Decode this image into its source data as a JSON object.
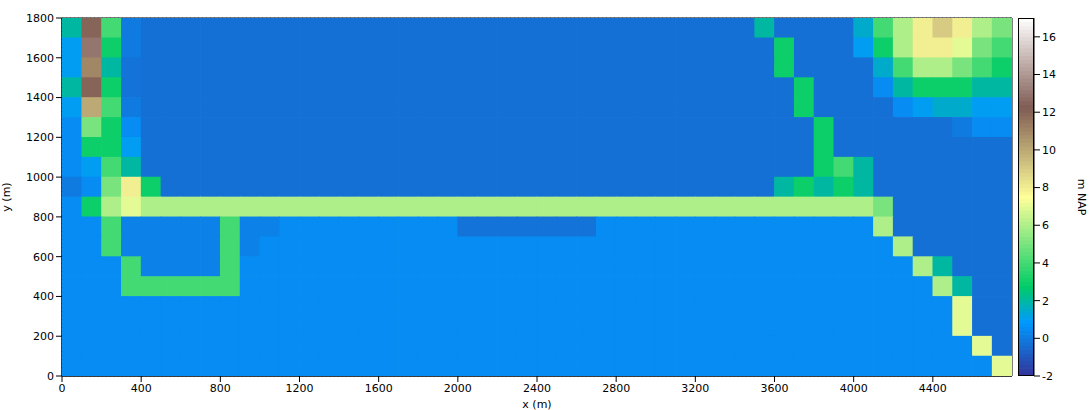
{
  "chart_data": {
    "type": "heatmap",
    "x_label": "x (m)",
    "y_label": "y (m)",
    "x": [
      50,
      150,
      250,
      350,
      450,
      550,
      650,
      750,
      850,
      950,
      1050,
      1150,
      1250,
      1350,
      1450,
      1550,
      1650,
      1750,
      1850,
      1950,
      2050,
      2150,
      2250,
      2350,
      2450,
      2550,
      2650,
      2750,
      2850,
      2950,
      3050,
      3150,
      3250,
      3350,
      3450,
      3550,
      3650,
      3750,
      3850,
      3950,
      4050,
      4150,
      4250,
      4350,
      4450,
      4550,
      4650,
      4750
    ],
    "y": [
      1750,
      1650,
      1550,
      1450,
      1350,
      1250,
      1150,
      1050,
      950,
      850,
      750,
      650,
      550,
      450,
      350,
      250,
      150,
      50
    ],
    "z": [
      [
        2,
        12,
        4,
        0,
        -0.3,
        -0.3,
        -0.3,
        -0.3,
        -0.3,
        -0.3,
        -0.3,
        -0.3,
        -0.3,
        -0.3,
        -0.3,
        -0.3,
        -0.3,
        -0.3,
        -0.3,
        -0.3,
        -0.3,
        -0.3,
        -0.3,
        -0.3,
        -0.3,
        -0.3,
        -0.3,
        -0.3,
        -0.3,
        -0.3,
        -0.3,
        -0.3,
        -0.3,
        -0.3,
        -0.3,
        2,
        -0.3,
        -0.3,
        -0.3,
        -0.3,
        1.5,
        4,
        6,
        8,
        9,
        8,
        6,
        5
      ],
      [
        1,
        13,
        3,
        0,
        -0.3,
        -0.3,
        -0.3,
        -0.3,
        -0.3,
        -0.3,
        -0.3,
        -0.3,
        -0.3,
        -0.3,
        -0.3,
        -0.3,
        -0.3,
        -0.3,
        -0.3,
        -0.3,
        -0.3,
        -0.3,
        -0.3,
        -0.3,
        -0.3,
        -0.3,
        -0.3,
        -0.3,
        -0.3,
        -0.3,
        -0.3,
        -0.3,
        -0.3,
        -0.3,
        -0.3,
        -0.3,
        3,
        -0.3,
        -0.3,
        -0.3,
        1,
        3,
        6,
        8,
        8,
        7,
        5,
        4
      ],
      [
        1,
        11,
        2,
        -0.2,
        -0.3,
        -0.3,
        -0.3,
        -0.3,
        -0.3,
        -0.3,
        -0.3,
        -0.3,
        -0.3,
        -0.3,
        -0.3,
        -0.3,
        -0.3,
        -0.3,
        -0.3,
        -0.3,
        -0.3,
        -0.3,
        -0.3,
        -0.3,
        -0.3,
        -0.3,
        -0.3,
        -0.3,
        -0.3,
        -0.3,
        -0.3,
        -0.3,
        -0.3,
        -0.3,
        -0.3,
        -0.3,
        3,
        -0.3,
        -0.3,
        -0.3,
        -0.3,
        1.5,
        4,
        6,
        6,
        5,
        4,
        3
      ],
      [
        2,
        12,
        3,
        -0.2,
        -0.3,
        -0.3,
        -0.3,
        -0.3,
        -0.3,
        -0.3,
        -0.3,
        -0.3,
        -0.3,
        -0.3,
        -0.3,
        -0.3,
        -0.3,
        -0.3,
        -0.3,
        -0.3,
        -0.3,
        -0.3,
        -0.3,
        -0.3,
        -0.3,
        -0.3,
        -0.3,
        -0.3,
        -0.3,
        -0.3,
        -0.3,
        -0.3,
        -0.3,
        -0.3,
        -0.3,
        -0.3,
        -0.3,
        3,
        -0.3,
        -0.3,
        -0.3,
        0.5,
        2,
        3,
        3,
        3,
        2,
        2
      ],
      [
        1,
        10,
        4,
        0,
        -0.3,
        -0.3,
        -0.3,
        -0.3,
        -0.3,
        -0.3,
        -0.3,
        -0.3,
        -0.3,
        -0.3,
        -0.3,
        -0.3,
        -0.3,
        -0.3,
        -0.3,
        -0.3,
        -0.3,
        -0.3,
        -0.3,
        -0.3,
        -0.3,
        -0.3,
        -0.3,
        -0.3,
        -0.3,
        -0.3,
        -0.3,
        -0.3,
        -0.3,
        -0.3,
        -0.3,
        -0.3,
        -0.3,
        3,
        -0.3,
        -0.3,
        -0.3,
        -0.3,
        0.5,
        1,
        1.5,
        1.5,
        1,
        1
      ],
      [
        0.5,
        5,
        3,
        0.5,
        -0.3,
        -0.3,
        -0.3,
        -0.3,
        -0.3,
        -0.3,
        -0.3,
        -0.3,
        -0.3,
        -0.3,
        -0.3,
        -0.3,
        -0.3,
        -0.3,
        -0.3,
        -0.3,
        -0.3,
        -0.3,
        -0.3,
        -0.3,
        -0.3,
        -0.3,
        -0.3,
        -0.3,
        -0.3,
        -0.3,
        -0.3,
        -0.3,
        -0.3,
        -0.3,
        -0.3,
        -0.3,
        -0.3,
        -0.3,
        3,
        -0.3,
        -0.3,
        -0.3,
        -0.3,
        -0.3,
        -0.3,
        0,
        0.5,
        0.5
      ],
      [
        0.5,
        3,
        3,
        1,
        -0.3,
        -0.3,
        -0.3,
        -0.3,
        -0.3,
        -0.3,
        -0.3,
        -0.3,
        -0.3,
        -0.3,
        -0.3,
        -0.3,
        -0.3,
        -0.3,
        -0.3,
        -0.3,
        -0.3,
        -0.3,
        -0.3,
        -0.3,
        -0.3,
        -0.3,
        -0.3,
        -0.3,
        -0.3,
        -0.3,
        -0.3,
        -0.3,
        -0.3,
        -0.3,
        -0.3,
        -0.3,
        -0.3,
        -0.3,
        3,
        -0.3,
        -0.3,
        -0.3,
        -0.3,
        -0.3,
        -0.3,
        -0.3,
        -0.3,
        -0.3
      ],
      [
        0.5,
        1,
        4,
        2,
        -0.3,
        -0.3,
        -0.3,
        -0.3,
        -0.3,
        -0.3,
        -0.3,
        -0.3,
        -0.3,
        -0.3,
        -0.3,
        -0.3,
        -0.3,
        -0.3,
        -0.3,
        -0.3,
        -0.3,
        -0.3,
        -0.3,
        -0.3,
        -0.3,
        -0.3,
        -0.3,
        -0.3,
        -0.3,
        -0.3,
        -0.3,
        -0.3,
        -0.3,
        -0.3,
        -0.3,
        -0.3,
        -0.3,
        -0.3,
        3,
        4,
        2,
        -0.3,
        -0.3,
        -0.3,
        -0.3,
        -0.3,
        -0.3,
        -0.3
      ],
      [
        0,
        0.5,
        5,
        8,
        3,
        -0.3,
        -0.3,
        -0.3,
        -0.3,
        -0.3,
        -0.3,
        -0.3,
        -0.3,
        -0.3,
        -0.3,
        -0.3,
        -0.3,
        -0.3,
        -0.3,
        -0.3,
        -0.3,
        -0.3,
        -0.3,
        -0.3,
        -0.3,
        -0.3,
        -0.3,
        -0.3,
        -0.3,
        -0.3,
        -0.3,
        -0.3,
        -0.3,
        -0.3,
        -0.3,
        -0.3,
        2,
        3,
        2,
        3,
        2,
        -0.3,
        -0.3,
        -0.3,
        -0.3,
        -0.3,
        -0.3,
        -0.3
      ],
      [
        0.5,
        3,
        6,
        7,
        6,
        6,
        6,
        6,
        6,
        6,
        6,
        6,
        6,
        6,
        6,
        6,
        6,
        6,
        6,
        6,
        6,
        6,
        6,
        6,
        6,
        6,
        6,
        6,
        6,
        6,
        6,
        6,
        6,
        6,
        6,
        6,
        6,
        6,
        6,
        6,
        6,
        5,
        -0.3,
        -0.3,
        -0.3,
        -0.3,
        -0.3,
        -0.3
      ],
      [
        0.5,
        0.5,
        4,
        0.2,
        0.2,
        0.2,
        0.2,
        0.2,
        4,
        0.2,
        0.2,
        0.5,
        0.5,
        0.5,
        0.5,
        0.5,
        0.5,
        0.5,
        0.5,
        0.5,
        -0.2,
        -0.2,
        -0.2,
        -0.2,
        -0.2,
        -0.2,
        -0.2,
        0.5,
        0.5,
        0.5,
        0.5,
        0.5,
        0.5,
        0.5,
        0.5,
        0.5,
        0.5,
        0.5,
        0.5,
        0.5,
        0.5,
        6,
        -0.3,
        -0.3,
        -0.3,
        -0.3,
        -0.3,
        -0.3
      ],
      [
        0.5,
        0.5,
        4,
        0.2,
        0.2,
        0.2,
        0.2,
        0.2,
        4,
        0.2,
        0.5,
        0.5,
        0.5,
        0.5,
        0.5,
        0.5,
        0.5,
        0.5,
        0.5,
        0.5,
        0.5,
        0.5,
        0.5,
        0.5,
        0.5,
        0.5,
        0.5,
        0.5,
        0.5,
        0.5,
        0.5,
        0.5,
        0.5,
        0.5,
        0.5,
        0.5,
        0.5,
        0.5,
        0.5,
        0.5,
        0.5,
        0.5,
        6,
        -0.3,
        -0.3,
        -0.3,
        -0.3,
        -0.3
      ],
      [
        0.5,
        0.5,
        0.5,
        4,
        0.2,
        0.2,
        0.2,
        0.2,
        4,
        0.5,
        0.5,
        0.5,
        0.5,
        0.5,
        0.5,
        0.5,
        0.5,
        0.5,
        0.5,
        0.5,
        0.5,
        0.5,
        0.5,
        0.5,
        0.5,
        0.5,
        0.5,
        0.5,
        0.5,
        0.5,
        0.5,
        0.5,
        0.5,
        0.5,
        0.5,
        0.5,
        0.5,
        0.5,
        0.5,
        0.5,
        0.5,
        0.5,
        0.5,
        6,
        2,
        -0.3,
        -0.3,
        -0.3
      ],
      [
        0.5,
        0.5,
        0.5,
        4,
        4,
        4,
        4,
        4,
        4,
        0.5,
        0.5,
        0.5,
        0.5,
        0.5,
        0.5,
        0.5,
        0.5,
        0.5,
        0.5,
        0.5,
        0.5,
        0.5,
        0.5,
        0.5,
        0.5,
        0.5,
        0.5,
        0.5,
        0.5,
        0.5,
        0.5,
        0.5,
        0.5,
        0.5,
        0.5,
        0.5,
        0.5,
        0.5,
        0.5,
        0.5,
        0.5,
        0.5,
        0.5,
        0.5,
        6,
        2,
        -0.3,
        -0.3
      ],
      [
        0.5,
        0.5,
        0.5,
        0.5,
        0.5,
        0.5,
        0.5,
        0.5,
        0.5,
        0.5,
        0.5,
        0.5,
        0.5,
        0.5,
        0.5,
        0.5,
        0.5,
        0.5,
        0.5,
        0.5,
        0.5,
        0.5,
        0.5,
        0.5,
        0.5,
        0.5,
        0.5,
        0.5,
        0.5,
        0.5,
        0.5,
        0.5,
        0.5,
        0.5,
        0.5,
        0.5,
        0.5,
        0.5,
        0.5,
        0.5,
        0.5,
        0.5,
        0.5,
        0.5,
        0.5,
        7,
        -0.3,
        -0.3
      ],
      [
        0.5,
        0.5,
        0.5,
        0.5,
        0.5,
        0.5,
        0.5,
        0.5,
        0.5,
        0.5,
        0.5,
        0.5,
        0.5,
        0.5,
        0.5,
        0.5,
        0.5,
        0.5,
        0.5,
        0.5,
        0.5,
        0.5,
        0.5,
        0.5,
        0.5,
        0.5,
        0.5,
        0.5,
        0.5,
        0.5,
        0.5,
        0.5,
        0.5,
        0.5,
        0.5,
        0.5,
        0.5,
        0.5,
        0.5,
        0.5,
        0.5,
        0.5,
        0.5,
        0.5,
        0.5,
        7,
        -0.3,
        -0.3
      ],
      [
        0.5,
        0.5,
        0.5,
        0.5,
        0.5,
        0.5,
        0.5,
        0.5,
        0.5,
        0.5,
        0.5,
        0.5,
        0.5,
        0.5,
        0.5,
        0.5,
        0.5,
        0.5,
        0.5,
        0.5,
        0.5,
        0.5,
        0.5,
        0.5,
        0.5,
        0.5,
        0.5,
        0.5,
        0.5,
        0.5,
        0.5,
        0.5,
        0.5,
        0.5,
        0.5,
        0.5,
        0.5,
        0.5,
        0.5,
        0.5,
        0.5,
        0.5,
        0.5,
        0.5,
        0.5,
        0.5,
        7,
        -0.3
      ],
      [
        0.5,
        0.5,
        0.5,
        0.5,
        0.5,
        0.5,
        0.5,
        0.5,
        0.5,
        0.5,
        0.5,
        0.5,
        0.5,
        0.5,
        0.5,
        0.5,
        0.5,
        0.5,
        0.5,
        0.5,
        0.5,
        0.5,
        0.5,
        0.5,
        0.5,
        0.5,
        0.5,
        0.5,
        0.5,
        0.5,
        0.5,
        0.5,
        0.5,
        0.5,
        0.5,
        0.5,
        0.5,
        0.5,
        0.5,
        0.5,
        0.5,
        0.5,
        0.5,
        0.5,
        0.5,
        0.5,
        0.5,
        7
      ]
    ],
    "xlim": [
      0,
      4800
    ],
    "ylim": [
      0,
      1800
    ],
    "xticks": [
      0,
      400,
      800,
      1200,
      1600,
      2000,
      2400,
      2800,
      3200,
      3600,
      4000,
      4400
    ],
    "yticks": [
      0,
      200,
      400,
      600,
      800,
      1000,
      1200,
      1400,
      1600,
      1800
    ],
    "grid": true,
    "colorbar": {
      "label": "m NAP",
      "range": [
        -2,
        17
      ],
      "ticks": [
        -2,
        0,
        2,
        4,
        6,
        8,
        10,
        12,
        14,
        16
      ]
    }
  }
}
